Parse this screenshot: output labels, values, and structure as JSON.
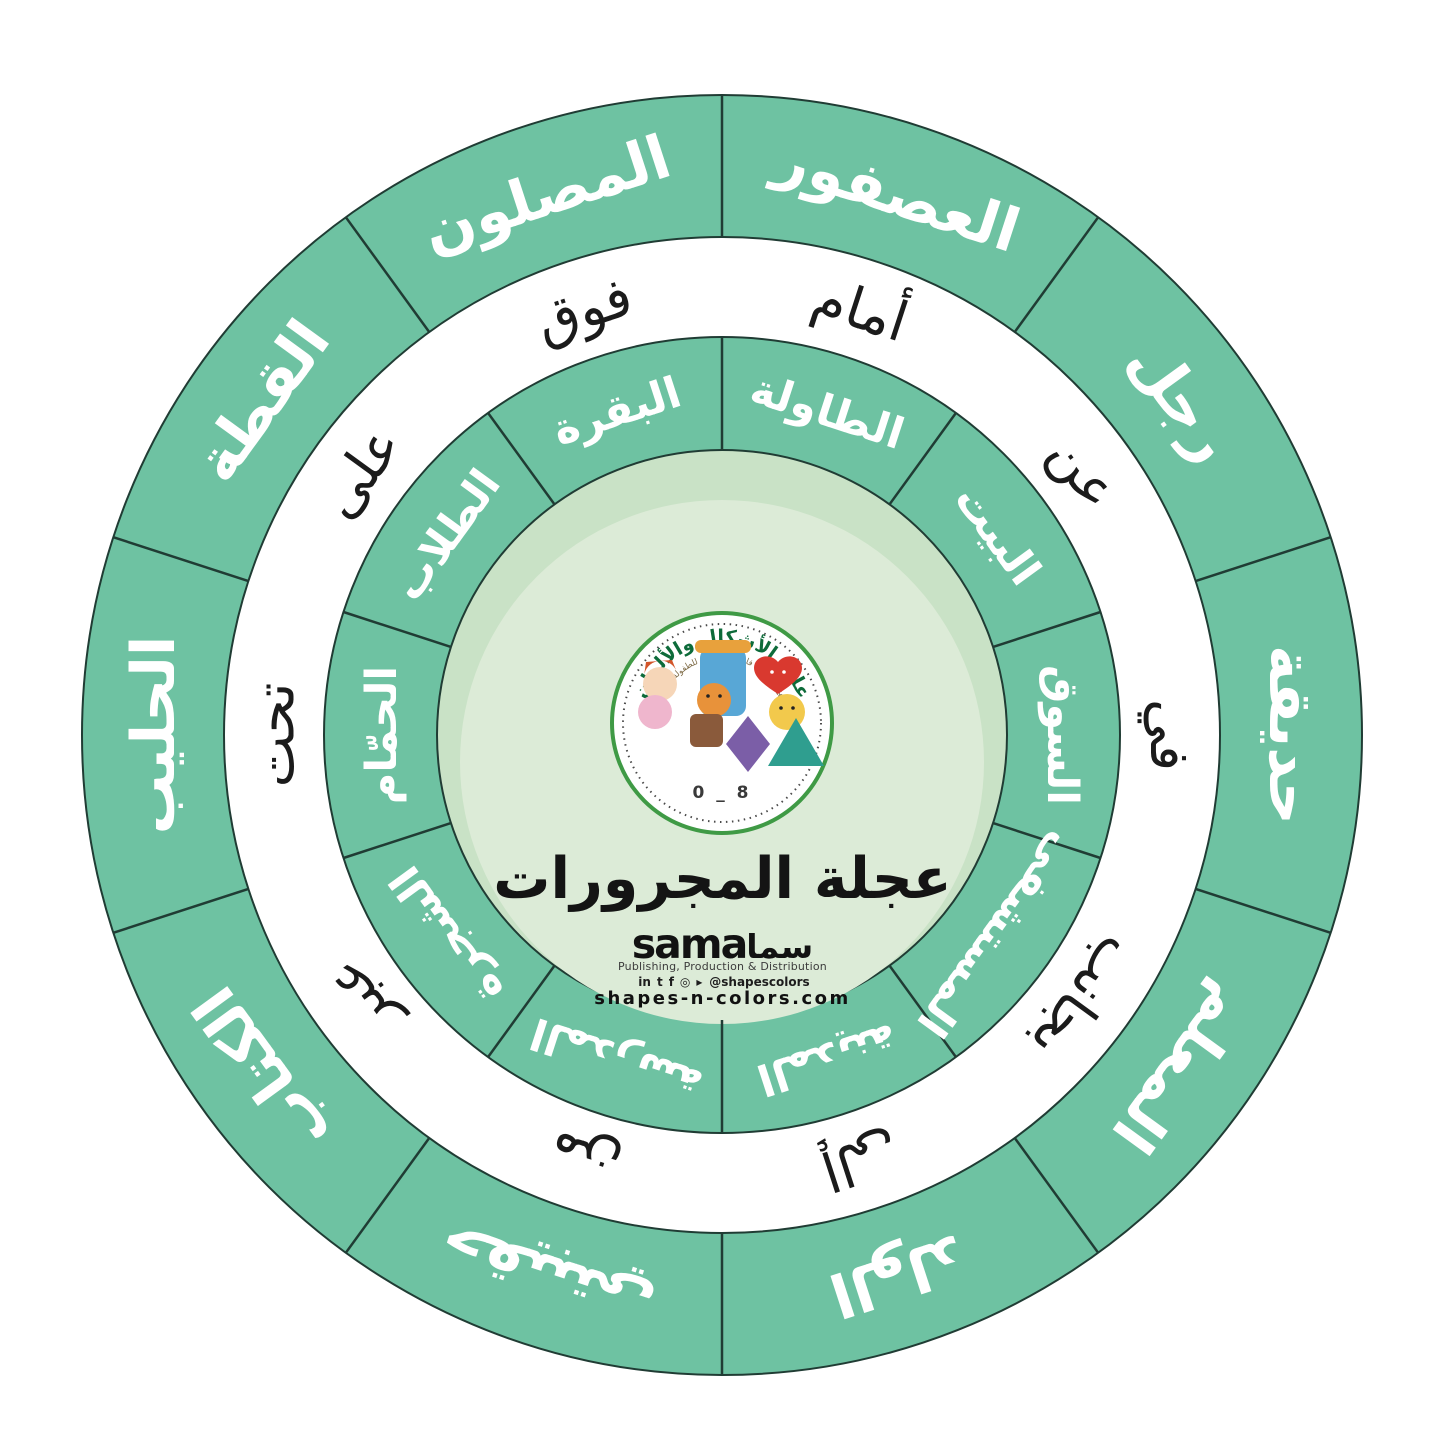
{
  "wheel": {
    "title": "عجلة المجرورات",
    "rings": [
      "outer-nouns",
      "prepositions",
      "inner-nouns"
    ],
    "segments": [
      {
        "outer": "العصفور",
        "middle": "أمام",
        "inner": "الطاولة"
      },
      {
        "outer": "رجل",
        "middle": "عن",
        "inner": "البيت"
      },
      {
        "outer": "حديقة",
        "middle": "في",
        "inner": "السوق"
      },
      {
        "outer": "المعلم",
        "middle": "بجانب",
        "inner": "المستشفى"
      },
      {
        "outer": "الولد",
        "middle": "إلى",
        "inner": "المدينة"
      },
      {
        "outer": "حقيبتي",
        "middle": "من",
        "inner": "المدرسة"
      },
      {
        "outer": "الكتاب",
        "middle": "عبر",
        "inner": "الشجرة"
      },
      {
        "outer": "الحليب",
        "middle": "تحت",
        "inner": "الحمّام"
      },
      {
        "outer": "القطة",
        "middle": "على",
        "inner": "الطلاب"
      },
      {
        "outer": "المصلون",
        "middle": "فوق",
        "inner": "البقرة"
      }
    ],
    "colors": {
      "ring_green": "#6ec2a2",
      "ring_white": "#ffffff",
      "center_band": "#c9e2c6",
      "center_light": "#dcebd7",
      "divider": "#203c34",
      "outer_text": "#ffffff",
      "middle_text": "#1b1b1b",
      "badge_border": "#3f9a45",
      "badge_title_color": "#0d6b3a"
    }
  },
  "badge": {
    "arc_title": "عالم الأشكال والألوان",
    "arc_subtitle": "منهج الدكتورة فاطمة البريكي للطفولة المبكرة",
    "age_range": "0 _ 8"
  },
  "publisher": {
    "logo_latin": "sama",
    "logo_arabic": "سما",
    "tagline": "Publishing, Production & Distribution",
    "social_icons": [
      {
        "name": "linkedin-icon",
        "glyph": "in"
      },
      {
        "name": "twitter-icon",
        "glyph": "t"
      },
      {
        "name": "facebook-icon",
        "glyph": "f"
      },
      {
        "name": "instagram-icon",
        "glyph": "◎"
      },
      {
        "name": "youtube-icon",
        "glyph": "▸"
      }
    ],
    "social_handle": "@shapescolors",
    "website": "shapes-n-colors.com"
  }
}
